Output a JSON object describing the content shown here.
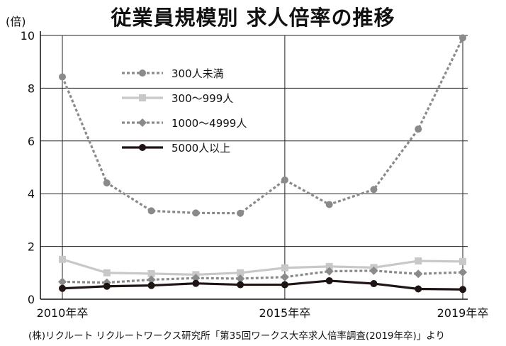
{
  "chart_data": {
    "type": "line",
    "title": "従業員規模別 求人倍率の推移",
    "unit_label": "(倍)",
    "source": "(株)リクルート リクルートワークス研究所「第35回ワークス大卒求人倍率調査(2019年卒)」より",
    "x": [
      2010,
      2011,
      2012,
      2013,
      2014,
      2015,
      2016,
      2017,
      2018,
      2019
    ],
    "x_tick_labels": [
      "2010年卒",
      "2015年卒",
      "2019年卒"
    ],
    "x_tick_values": [
      2010,
      2015,
      2019
    ],
    "xlim": [
      2010,
      2019
    ],
    "ylim": [
      0,
      10
    ],
    "y_ticks": [
      "0",
      "2",
      "4",
      "6",
      "8",
      "10"
    ],
    "y_tick_values": [
      0,
      2,
      4,
      6,
      8,
      10
    ],
    "grid": true,
    "legend_position": "upper-left",
    "series": [
      {
        "name": "300人未満",
        "values": [
          8.43,
          4.41,
          3.35,
          3.27,
          3.26,
          4.52,
          3.59,
          4.16,
          6.45,
          9.91
        ],
        "color": "#8a8a8a",
        "dash": "dotted",
        "marker": "circle"
      },
      {
        "name": "300〜999人",
        "values": [
          1.51,
          1.0,
          0.97,
          0.93,
          1.0,
          1.19,
          1.24,
          1.2,
          1.45,
          1.43
        ],
        "color": "#c8c8c8",
        "dash": "solid",
        "marker": "square"
      },
      {
        "name": "1000〜4999人",
        "values": [
          0.66,
          0.63,
          0.74,
          0.8,
          0.78,
          0.84,
          1.06,
          1.08,
          0.96,
          1.02
        ],
        "color": "#8a8a8a",
        "dash": "dotted",
        "marker": "diamond"
      },
      {
        "name": "5000人以上",
        "values": [
          0.41,
          0.49,
          0.52,
          0.6,
          0.55,
          0.55,
          0.7,
          0.59,
          0.39,
          0.37
        ],
        "color": "#1e1414",
        "dash": "solid",
        "marker": "circle"
      }
    ]
  }
}
